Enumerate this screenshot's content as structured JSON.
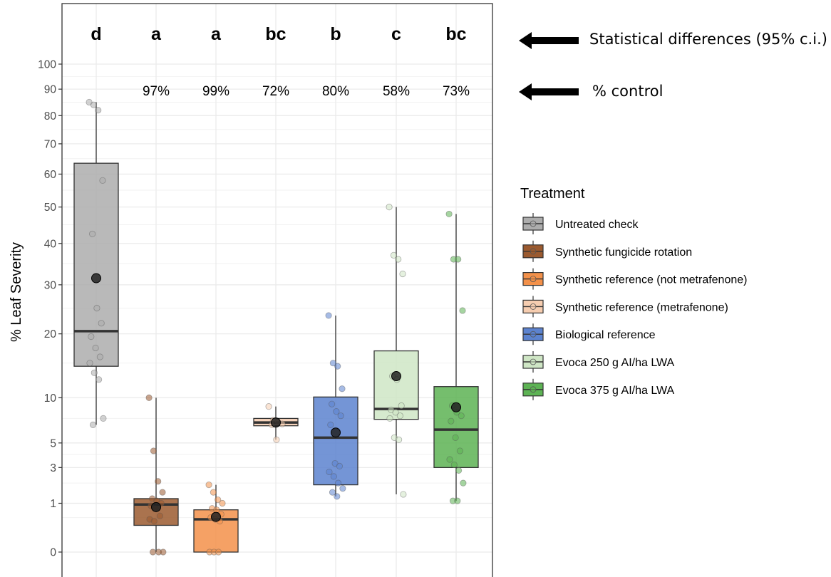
{
  "chart_data": {
    "type": "boxplot",
    "ylabel": "% Leaf Severity",
    "y_scale": "sqrt",
    "ylim": [
      0,
      106
    ],
    "y_ticks": [
      0,
      1,
      3,
      5,
      10,
      20,
      30,
      40,
      50,
      60,
      70,
      80,
      90,
      100
    ],
    "grid": true,
    "legend": {
      "title": "Treatment",
      "position": "right"
    },
    "groups": [
      {
        "name": "Untreated check",
        "color": "#adadad",
        "letter": "d",
        "pct_control": "",
        "q1": 14.5,
        "median": 20.5,
        "q3": 63.5,
        "whisker_low": 6.8,
        "whisker_high": 85.0,
        "mean": 31.5,
        "points": [
          85,
          84,
          82,
          58,
          42.5,
          25,
          22,
          19.5,
          17.5,
          16,
          15,
          13.5,
          12.5,
          7.5,
          6.8
        ]
      },
      {
        "name": "Synthetic fungicide rotation",
        "color": "#9b5a2f",
        "letter": "a",
        "pct_control": "97%",
        "q1": 0.3,
        "median": 0.95,
        "q3": 1.2,
        "whisker_low": 0,
        "whisker_high": 10,
        "mean": 0.85,
        "points": [
          10,
          4.3,
          2.1,
          1.5,
          1.2,
          1.1,
          1.0,
          0.9,
          0.8,
          0.55,
          0.45,
          0.4,
          0,
          0,
          0
        ]
      },
      {
        "name": "Synthetic reference (not metrafenone)",
        "color": "#f3914a",
        "letter": "a",
        "pct_control": "99%",
        "q1": 0,
        "median": 0.45,
        "q3": 0.75,
        "whisker_low": 0,
        "whisker_high": 1.9,
        "mean": 0.52,
        "points": [
          1.9,
          1.5,
          1.15,
          1.0,
          0.8,
          0.75,
          0.6,
          0.5,
          0.45,
          0.4,
          0,
          0,
          0
        ]
      },
      {
        "name": "Synthetic reference (metrafenone)",
        "color": "#f6cdb0",
        "letter": "bc",
        "pct_control": "72%",
        "q1": 6.7,
        "median": 7.05,
        "q3": 7.5,
        "whisker_low": 5.3,
        "whisker_high": 8.9,
        "mean": 7.05,
        "points": [
          8.9,
          7.3,
          7.1,
          6.9,
          6.8,
          5.3
        ]
      },
      {
        "name": "Biological reference",
        "color": "#5c83cf",
        "letter": "b",
        "pct_control": "80%",
        "q1": 1.9,
        "median": 5.5,
        "q3": 10.1,
        "whisker_low": 1.3,
        "whisker_high": 23.5,
        "mean": 6.0,
        "points": [
          23.5,
          15,
          14.5,
          11.2,
          9.2,
          8.3,
          7.8,
          6.8,
          3.3,
          3.1,
          2.7,
          2.4,
          2.0,
          1.7,
          1.5,
          1.3
        ]
      },
      {
        "name": "Evoca 250 g AI/ha LWA",
        "color": "#cfe6c5",
        "letter": "c",
        "pct_control": "58%",
        "q1": 7.4,
        "median": 8.6,
        "q3": 17,
        "whisker_low": 1.4,
        "whisker_high": 50,
        "mean": 13,
        "points": [
          50,
          37,
          36,
          32.5,
          13,
          12.5,
          9.0,
          8.5,
          8.2,
          7.8,
          7.5,
          5.5,
          5.3,
          1.4
        ]
      },
      {
        "name": "Evoca 375 g AI/ha LWA",
        "color": "#5db354",
        "letter": "bc",
        "pct_control": "73%",
        "q1": 3.0,
        "median": 6.3,
        "q3": 11.5,
        "whisker_low": 1.1,
        "whisker_high": 48,
        "mean": 8.8,
        "points": [
          48,
          36,
          36,
          24.5,
          9.0,
          8.2,
          7.8,
          7.2,
          5.5,
          4.3,
          3.6,
          3.2,
          2.8,
          2.0,
          1.1,
          1.1
        ]
      }
    ]
  },
  "annotations": {
    "letters_label": "Statistical differences (95% c.i.)",
    "control_label": "% control"
  }
}
